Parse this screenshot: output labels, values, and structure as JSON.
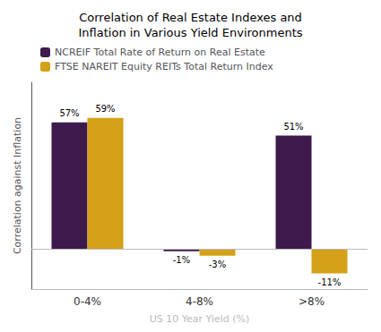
{
  "chart_data": {
    "type": "bar",
    "title": "Correlation of Real Estate Indexes and\nInflation in Various Yield Environments",
    "xlabel": "US 10 Year Yield (%)",
    "ylabel": "Correlation against Inflation",
    "categories": [
      "0-4%",
      "4-8%",
      ">8%"
    ],
    "series": [
      {
        "name": "NCREIF Total Rate of Return on Real Estate",
        "color": "#3d1a4b",
        "values": [
          57,
          -1,
          51
        ],
        "value_labels": [
          "57%",
          "-1%",
          "51%"
        ]
      },
      {
        "name": "FTSE NAREIT Equity REITs Total Return Index",
        "color": "#d4a017",
        "values": [
          59,
          -3,
          -11
        ],
        "value_labels": [
          "59%",
          "-3%",
          "-11%"
        ]
      }
    ],
    "ylim": [
      -18,
      75
    ],
    "yticks": [],
    "grid": false,
    "legend": "upper left",
    "data_labels": true,
    "tick_labels": "x"
  }
}
